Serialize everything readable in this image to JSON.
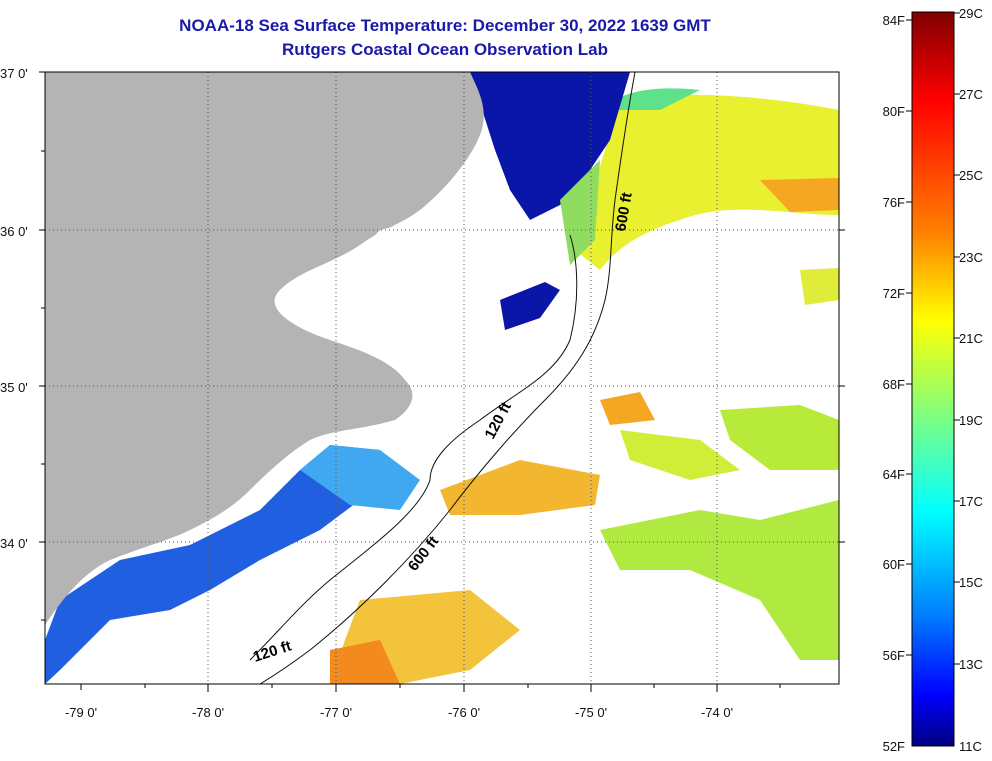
{
  "title": "NOAA-18 Sea Surface Temperature:  December 30, 2022 1639 GMT",
  "subtitle": "Rutgers Coastal Ocean Observation Lab",
  "lat_labels": [
    "37 0'",
    "36 0'",
    "35 0'",
    "34 0'"
  ],
  "lon_labels": [
    "-79 0'",
    "-78 0'",
    "-77 0'",
    "-76 0'",
    "-75 0'",
    "-74 0'"
  ],
  "isobaths": [
    "600 ft",
    "120 ft",
    "600 ft",
    "120 ft"
  ],
  "colorbar": {
    "f_labels": [
      "84F",
      "80F",
      "76F",
      "72F",
      "68F",
      "64F",
      "60F",
      "56F",
      "52F"
    ],
    "c_labels": [
      "29C",
      "27C",
      "25C",
      "23C",
      "21C",
      "19C",
      "17C",
      "15C",
      "13C",
      "11C"
    ],
    "colors": [
      "#7f0000",
      "#ff0000",
      "#ff8000",
      "#ffff00",
      "#80ff80",
      "#00ffff",
      "#0080ff",
      "#0000ff",
      "#00007f"
    ]
  },
  "palette": {
    "land": "#b4b4b4",
    "no_data": "#ffffff",
    "graticule": "#555555"
  }
}
